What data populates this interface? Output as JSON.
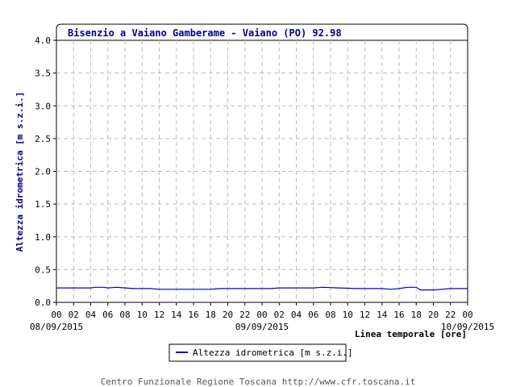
{
  "chart_data": {
    "type": "line",
    "title": "Bisenzio a Vaiano Gamberame - Vaiano (PO) 92.98",
    "ylabel": "Altezza idrometrica [m s.z.i.]",
    "xlabel": "Linea temporale [ore]",
    "ylim": [
      0,
      4
    ],
    "yticks": [
      "0.0",
      "0.5",
      "1.0",
      "1.5",
      "2.0",
      "2.5",
      "3.0",
      "3.5",
      "4.0"
    ],
    "xlim": [
      0,
      48
    ],
    "xticks": [
      "00",
      "02",
      "04",
      "06",
      "08",
      "10",
      "12",
      "14",
      "16",
      "18",
      "20",
      "22",
      "00",
      "02",
      "04",
      "06",
      "08",
      "10",
      "12",
      "14",
      "16",
      "18",
      "20",
      "22",
      "00"
    ],
    "dates": [
      {
        "hour": 0,
        "label": "08/09/2015"
      },
      {
        "hour": 24,
        "label": "09/09/2015"
      },
      {
        "hour": 48,
        "label": "10/09/2015"
      }
    ],
    "grid": true,
    "legend": "bottom-center",
    "series": [
      {
        "name": "Altezza idrometrica [m s.z.i.]",
        "color": "#0000cc",
        "points": [
          [
            0,
            0.22
          ],
          [
            2,
            0.22
          ],
          [
            4,
            0.22
          ],
          [
            4.5,
            0.23
          ],
          [
            5.5,
            0.23
          ],
          [
            6,
            0.22
          ],
          [
            7,
            0.23
          ],
          [
            8,
            0.22
          ],
          [
            9,
            0.21
          ],
          [
            11,
            0.21
          ],
          [
            12,
            0.2
          ],
          [
            14,
            0.2
          ],
          [
            16,
            0.2
          ],
          [
            18,
            0.2
          ],
          [
            19,
            0.21
          ],
          [
            22,
            0.21
          ],
          [
            25,
            0.21
          ],
          [
            26,
            0.22
          ],
          [
            30,
            0.22
          ],
          [
            31,
            0.23
          ],
          [
            33,
            0.22
          ],
          [
            35,
            0.21
          ],
          [
            38,
            0.21
          ],
          [
            39,
            0.2
          ],
          [
            40,
            0.21
          ],
          [
            41,
            0.23
          ],
          [
            42,
            0.23
          ],
          [
            42.5,
            0.19
          ],
          [
            44,
            0.19
          ],
          [
            45,
            0.2
          ],
          [
            46,
            0.21
          ],
          [
            48,
            0.21
          ]
        ]
      }
    ]
  },
  "footer": "Centro Funzionale Regione Toscana http://www.cfr.toscana.it"
}
